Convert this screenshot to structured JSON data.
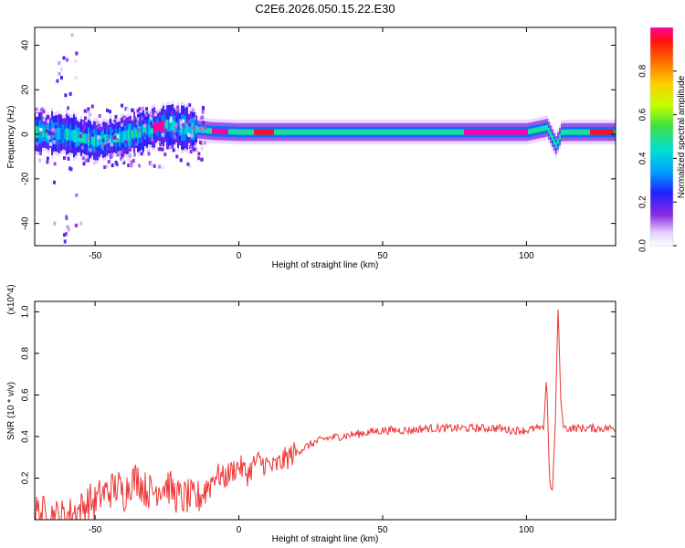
{
  "title": "C2E6.2026.050.15.22.E30",
  "chart_data": [
    {
      "type": "heatmap",
      "xlabel": "Height of straight line (km)",
      "ylabel": "Frequency (Hz)",
      "xlim": [
        -71,
        131
      ],
      "ylim": [
        -50,
        48
      ],
      "xticks": [
        -50,
        0,
        50,
        100
      ],
      "yticks": [
        -40,
        -20,
        0,
        20,
        40
      ],
      "colorbar": {
        "label": "Normalized spectral amplitude",
        "range": [
          0,
          1
        ],
        "ticks": [
          0.0,
          0.2,
          0.4,
          0.6,
          0.8
        ],
        "tick_labels": [
          "0.0",
          "0.2",
          "0.4",
          "0.6",
          "0.8"
        ]
      },
      "ridge_center_hz": [
        {
          "x": -70,
          "y": 1
        },
        {
          "x": -60,
          "y": 0
        },
        {
          "x": -50,
          "y": -3
        },
        {
          "x": -45,
          "y": -2
        },
        {
          "x": -40,
          "y": -1
        },
        {
          "x": -35,
          "y": 1
        },
        {
          "x": -30,
          "y": 3
        },
        {
          "x": -25,
          "y": 4
        },
        {
          "x": -20,
          "y": 3
        },
        {
          "x": -10,
          "y": 1.5
        },
        {
          "x": 0,
          "y": 1
        },
        {
          "x": 50,
          "y": 1
        },
        {
          "x": 100,
          "y": 1
        },
        {
          "x": 107,
          "y": 3
        },
        {
          "x": 110,
          "y": -5
        },
        {
          "x": 112,
          "y": 1
        },
        {
          "x": 131,
          "y": 1
        }
      ],
      "peak_bands": [
        {
          "from": -30,
          "to": -26,
          "amplitude": 1.0
        },
        {
          "from": -10,
          "to": -4,
          "amplitude": 1.0
        },
        {
          "from": 5,
          "to": 12,
          "amplitude": 0.95
        },
        {
          "from": 78,
          "to": 100,
          "amplitude": 1.0
        },
        {
          "from": 122,
          "to": 130,
          "amplitude": 0.95
        }
      ]
    },
    {
      "type": "line",
      "xlabel": "Height of straight line (km)",
      "ylabel": "SNR (10 * v/v)",
      "y_multiplier": "(x10^4)",
      "xlim": [
        -71,
        131
      ],
      "ylim": [
        0,
        1.05
      ],
      "xticks": [
        -50,
        0,
        50,
        100
      ],
      "yticks": [
        0.2,
        0.4,
        0.6,
        0.8,
        1.0
      ],
      "color": "#ee3333",
      "series": [
        {
          "name": "SNR",
          "x": [
            -71,
            -68,
            -65,
            -62,
            -60,
            -58,
            -55,
            -52,
            -50,
            -48,
            -45,
            -42,
            -40,
            -38,
            -35,
            -33,
            -30,
            -28,
            -25,
            -22,
            -20,
            -18,
            -15,
            -12,
            -10,
            -8,
            -5,
            -2,
            0,
            3,
            6,
            9,
            12,
            15,
            18,
            22,
            26,
            30,
            35,
            40,
            45,
            50,
            55,
            60,
            65,
            70,
            75,
            80,
            85,
            90,
            95,
            100,
            104,
            106,
            107,
            108,
            109,
            110,
            111,
            112,
            113,
            115,
            120,
            125,
            131
          ],
          "y": [
            0.04,
            0.03,
            0.02,
            0.01,
            0.02,
            0.03,
            0.05,
            0.09,
            0.08,
            0.12,
            0.14,
            0.16,
            0.12,
            0.18,
            0.2,
            0.15,
            0.13,
            0.16,
            0.17,
            0.12,
            0.1,
            0.11,
            0.09,
            0.14,
            0.18,
            0.22,
            0.2,
            0.24,
            0.26,
            0.22,
            0.28,
            0.27,
            0.25,
            0.28,
            0.31,
            0.34,
            0.37,
            0.39,
            0.4,
            0.41,
            0.42,
            0.43,
            0.43,
            0.43,
            0.44,
            0.44,
            0.44,
            0.44,
            0.44,
            0.44,
            0.43,
            0.43,
            0.44,
            0.44,
            0.7,
            0.2,
            0.12,
            0.45,
            1.02,
            0.55,
            0.44,
            0.44,
            0.44,
            0.44,
            0.44
          ]
        }
      ]
    }
  ]
}
